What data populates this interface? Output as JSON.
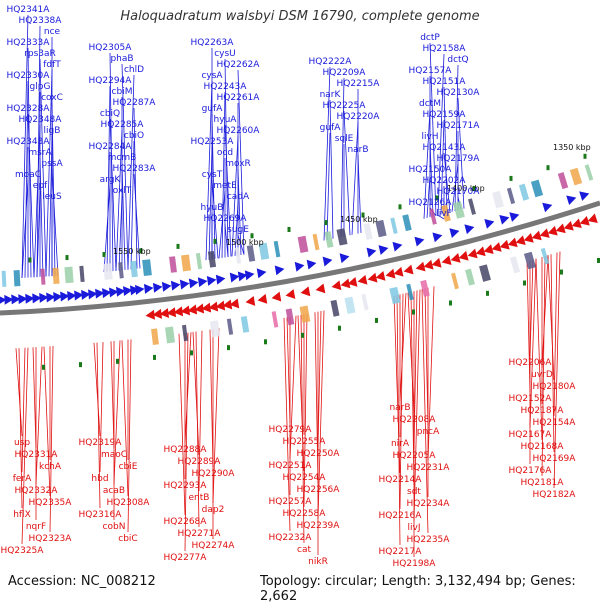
{
  "title": "Haloquadratum walsbyi DSM 16790, complete genome",
  "footer": {
    "accession": "Accession: NC_008212",
    "summary": "Topology: circular; Length: 3,132,494 bp; Genes: 2,662"
  },
  "colors": {
    "plus_strand": "#1a1adb",
    "minus_strand": "#e01010",
    "backbone": "#777777",
    "tick": "#1a7a1a"
  },
  "scale_labels": [
    "1550 kbp",
    "1500 kbp",
    "1450 kbp",
    "1400 kbp",
    "1350 kbp"
  ],
  "top_labels": [
    "HQ2341A",
    "HQ2338A",
    "nce",
    "HQ2333A",
    "rps3aR",
    "fdfT",
    "HQ2330A",
    "glpG",
    "coxC",
    "HQ2328A",
    "HQ2348A",
    "ligB",
    "HQ2343A",
    "msrA",
    "pssA",
    "moaC",
    "epf",
    "leuS",
    "HQ2305A",
    "phaB",
    "chlD",
    "HQ2294A",
    "cbiM",
    "HQ2287A",
    "cbiQ",
    "HQ2285A",
    "cbiO",
    "HQ2284A",
    "mcmB",
    "HQ2283A",
    "argK",
    "oxlT",
    "HQ2263A",
    "cysU",
    "HQ2262A",
    "cysA",
    "HQ2243A",
    "HQ2261A",
    "gufA",
    "hyuA",
    "HQ2260A",
    "HQ2253A",
    "ocd",
    "moxR",
    "cysT",
    "metE",
    "cadA",
    "hyuB",
    "HQ2269A",
    "sugE",
    "HQ2222A",
    "HQ2209A",
    "HQ2215A",
    "narK",
    "HQ2225A",
    "HQ2220A",
    "gufA",
    "sqlE",
    "narB",
    "dctP",
    "HQ2158A",
    "dctQ",
    "HQ2157A",
    "HQ2151A",
    "HQ2130A",
    "dctM",
    "HQ2159A",
    "HQ2171A",
    "livH",
    "HQ2143A",
    "HQ2179A",
    "HQ2150A",
    "HQ2202A",
    "HQ2170A",
    "HQ2126A",
    "livF"
  ],
  "bottom_labels": [
    "usp",
    "HQ2331A",
    "kchA",
    "ferA",
    "HQ2332A",
    "HQ2335A",
    "hflX",
    "nqrF",
    "HQ2323A",
    "HQ2325A",
    "HQ2319A",
    "maoC",
    "cbiE",
    "hbd",
    "acaB",
    "HQ2308A",
    "HQ2316A",
    "cobN",
    "cbiC",
    "HQ2288A",
    "HQ2289A",
    "HQ2290A",
    "HQ2293A",
    "entB",
    "dap2",
    "HQ2268A",
    "HQ2271A",
    "HQ2274A",
    "HQ2277A",
    "HQ2278A",
    "HQ2281A",
    "HQ2279A",
    "HQ2255A",
    "HQ2250A",
    "HQ2251A",
    "HQ2254A",
    "HQ2256A",
    "HQ2257A",
    "HQ2258A",
    "HQ2239A",
    "HQ2232A",
    "cat",
    "nikR",
    "HQ2224A",
    "narB",
    "HQ2208A",
    "pncA",
    "nirA",
    "HQ2205A",
    "HQ2231A",
    "HQ2214A",
    "sdt",
    "HQ2234A",
    "HQ2216A",
    "livJ",
    "HQ2235A",
    "HQ2217A",
    "HQ2198A",
    "HQ2219A",
    "HQ2199A",
    "HQ2223A",
    "HQ2227A",
    "HQ2204A",
    "HQ2206A",
    "uvrD",
    "HQ2180A",
    "HQ2152A",
    "HQ2187A",
    "HQ2154A",
    "HQ2167A",
    "HQ2168A",
    "HQ2169A",
    "HQ2176A",
    "HQ2181A",
    "HQ2182A"
  ]
}
